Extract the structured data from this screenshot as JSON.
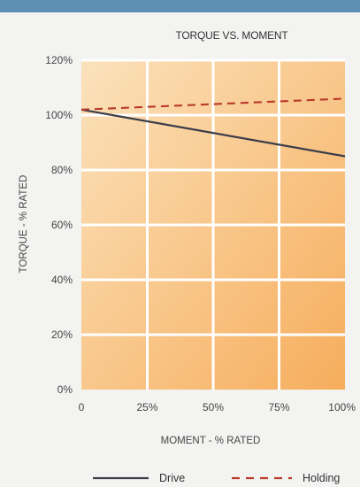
{
  "colors": {
    "background": "#f3f4f2",
    "header_band": "#5e8fb3",
    "plot_light": "#fbe2bc",
    "plot_dark": "#f6ad5c",
    "grid": "#ffffff",
    "drive_line": "#3a3c48",
    "holding_line": "#b83a2a"
  },
  "chart_data": {
    "type": "line",
    "title": "TORQUE VS. MOMENT",
    "xlabel": "MOMENT - % RATED",
    "ylabel": "TORQUE - % RATED",
    "x": [
      0,
      100
    ],
    "xlim": [
      0,
      100
    ],
    "ylim": [
      0,
      120
    ],
    "x_ticks": [
      0,
      25,
      50,
      75,
      100
    ],
    "x_tick_labels": [
      "0",
      "25%",
      "50%",
      "75%",
      "100%"
    ],
    "y_ticks": [
      0,
      20,
      40,
      60,
      80,
      100,
      120
    ],
    "y_tick_labels": [
      "0%",
      "20%",
      "40%",
      "60%",
      "80%",
      "100%",
      "120%"
    ],
    "grid": true,
    "legend_position": "bottom",
    "series": [
      {
        "name": "Drive",
        "values": [
          102,
          85
        ],
        "style": "solid",
        "color": "#3a3c48"
      },
      {
        "name": "Holding",
        "values": [
          102,
          106
        ],
        "style": "dashed",
        "color": "#b83a2a"
      }
    ]
  }
}
